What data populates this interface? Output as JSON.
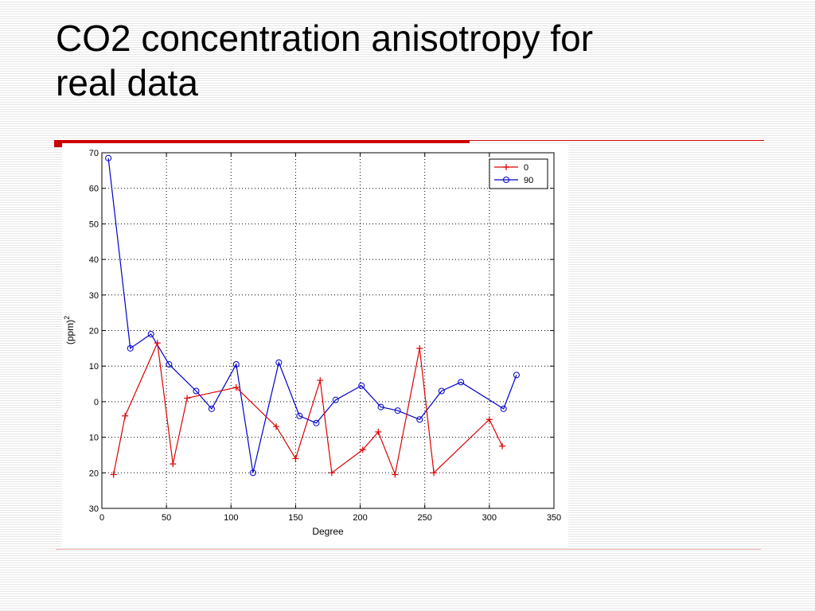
{
  "slide": {
    "title": "CO2 concentration anisotropy for\nreal data",
    "accent_color": "#cc0000"
  },
  "chart_data": {
    "type": "line",
    "title": "",
    "xlabel": "Degree",
    "ylabel": "(ppm)2",
    "xlim": [
      0,
      350
    ],
    "ylim": [
      -30,
      70
    ],
    "xticks": [
      0,
      50,
      100,
      150,
      200,
      250,
      300,
      350
    ],
    "yticks": [
      70,
      60,
      50,
      40,
      30,
      20,
      10,
      0,
      -10,
      -20,
      -30
    ],
    "ytick_labels": [
      "70",
      "60",
      "50",
      "40",
      "30",
      "20",
      "10",
      "0",
      "10",
      "20",
      "30"
    ],
    "grid": true,
    "legend_position": "top-right",
    "series": [
      {
        "name": "0",
        "color": "#dd0000",
        "marker": "plus",
        "x": [
          9,
          18,
          43,
          55,
          66,
          104,
          135,
          150,
          169,
          178,
          202,
          214,
          227,
          246,
          257,
          300,
          310
        ],
        "y": [
          -20.5,
          -4,
          16.5,
          -17.5,
          1,
          4,
          -7,
          -16,
          6,
          -20,
          -13.5,
          -8.5,
          -20.5,
          15,
          -20,
          -5,
          -12.5
        ]
      },
      {
        "name": "90",
        "color": "#0000cc",
        "marker": "circle",
        "x": [
          5,
          22,
          38,
          52,
          73,
          85,
          104,
          117,
          137,
          153,
          166,
          181,
          201,
          216,
          229,
          246,
          263,
          278,
          311,
          321
        ],
        "y": [
          68.5,
          15,
          19,
          10.5,
          3,
          -2,
          10.5,
          -20,
          11,
          -4,
          -6,
          0.5,
          4.5,
          -1.5,
          -2.5,
          -5,
          3,
          5.5,
          -2,
          7.5
        ]
      }
    ]
  }
}
